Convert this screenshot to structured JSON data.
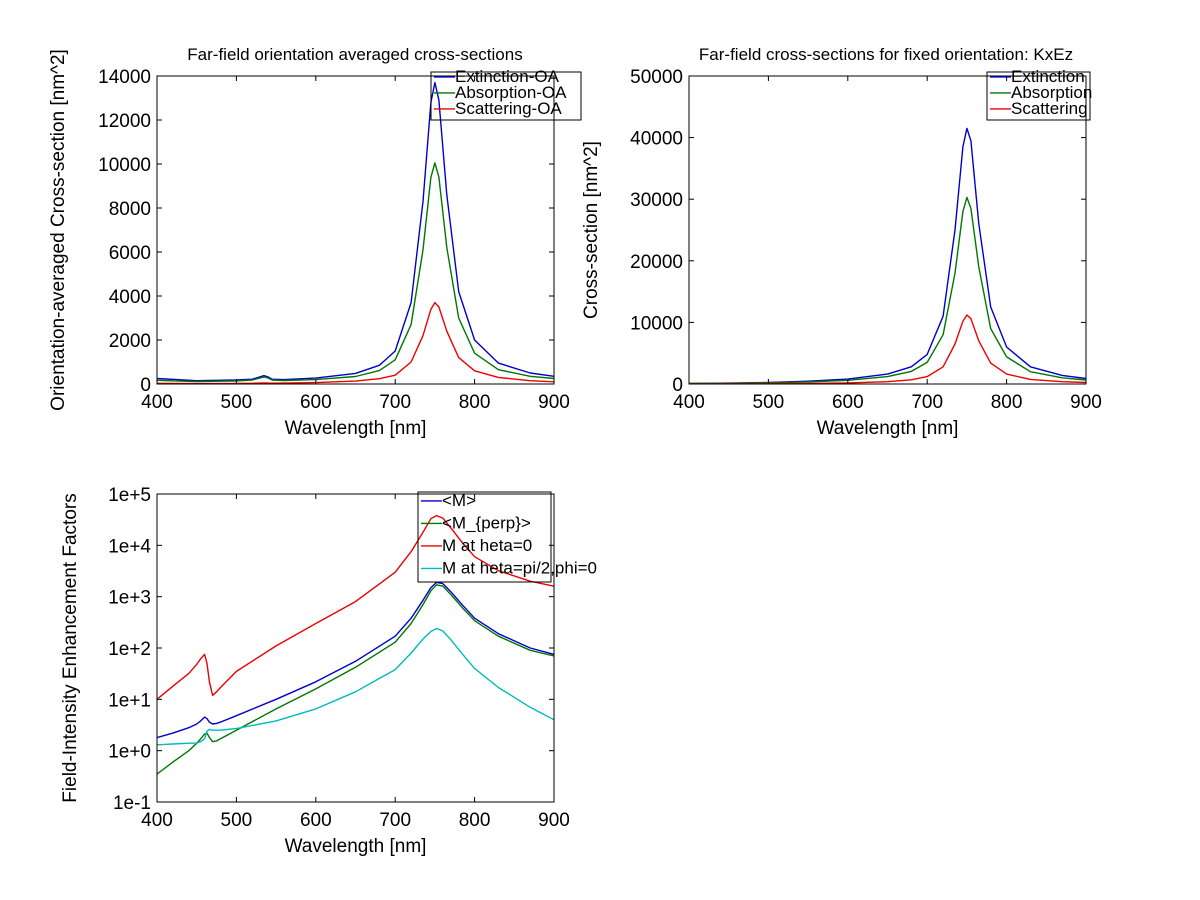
{
  "chart_data": [
    {
      "type": "line",
      "title": "Far-field orientation averaged cross-sections",
      "xlabel": "Wavelength [nm]",
      "ylabel": "Orientation-averaged Cross-section [nm^2]",
      "xlim": [
        400,
        900
      ],
      "ylim": [
        0,
        14000
      ],
      "yscale": "linear",
      "xticks": [
        "400",
        "500",
        "600",
        "700",
        "800",
        "900"
      ],
      "yticks": [
        "0",
        "2000",
        "4000",
        "6000",
        "8000",
        "10000",
        "12000",
        "14000"
      ],
      "legend_position": "top-right",
      "grid": false,
      "x": [
        400,
        450,
        500,
        520,
        535,
        540,
        545,
        560,
        600,
        650,
        680,
        700,
        720,
        735,
        745,
        750,
        755,
        765,
        780,
        800,
        830,
        870,
        900
      ],
      "series": [
        {
          "name": "Extinction-OA",
          "color": "#0000cc",
          "values": [
            250,
            150,
            180,
            220,
            380,
            320,
            220,
            200,
            270,
            480,
            850,
            1500,
            3700,
            8300,
            12800,
            13700,
            12900,
            8600,
            4200,
            2000,
            950,
            500,
            350
          ]
        },
        {
          "name": "Absorption-OA",
          "color": "#007700",
          "values": [
            170,
            110,
            140,
            180,
            320,
            270,
            180,
            160,
            200,
            340,
            610,
            1100,
            2700,
            6100,
            9400,
            10050,
            9400,
            6200,
            3000,
            1400,
            650,
            350,
            250
          ]
        },
        {
          "name": "Scattering-OA",
          "color": "#ee0000",
          "values": [
            30,
            20,
            25,
            30,
            45,
            40,
            35,
            40,
            65,
            130,
            240,
            400,
            1000,
            2200,
            3400,
            3700,
            3500,
            2400,
            1200,
            600,
            300,
            150,
            100
          ]
        }
      ]
    },
    {
      "type": "line",
      "title": "Far-field cross-sections for fixed orientation: KxEz",
      "xlabel": "Wavelength [nm]",
      "ylabel": "Cross-section [nm^2]",
      "xlim": [
        400,
        900
      ],
      "ylim": [
        0,
        50000
      ],
      "yscale": "linear",
      "xticks": [
        "400",
        "500",
        "600",
        "700",
        "800",
        "900"
      ],
      "yticks": [
        "0",
        "10000",
        "20000",
        "30000",
        "40000",
        "50000"
      ],
      "legend_position": "top-right",
      "grid": false,
      "x": [
        400,
        450,
        500,
        550,
        600,
        650,
        680,
        700,
        720,
        735,
        745,
        750,
        755,
        765,
        780,
        800,
        830,
        870,
        900
      ],
      "series": [
        {
          "name": "Extinction",
          "color": "#0000cc",
          "values": [
            100,
            150,
            250,
            450,
            800,
            1600,
            2800,
            4800,
            11000,
            25000,
            38500,
            41500,
            39500,
            26000,
            12500,
            6000,
            2800,
            1400,
            900
          ]
        },
        {
          "name": "Absorption",
          "color": "#007700",
          "values": [
            80,
            120,
            190,
            340,
            600,
            1200,
            2050,
            3500,
            8000,
            18000,
            28000,
            30300,
            28500,
            19000,
            9000,
            4400,
            2000,
            1000,
            650
          ]
        },
        {
          "name": "Scattering",
          "color": "#ee0000",
          "values": [
            20,
            30,
            50,
            100,
            180,
            380,
            680,
            1200,
            2800,
            6500,
            10200,
            11200,
            10600,
            7000,
            3400,
            1600,
            750,
            380,
            250
          ]
        }
      ]
    },
    {
      "type": "line",
      "title": "",
      "xlabel": "Wavelength [nm]",
      "ylabel": "Field-Intensity Enhancement Factors",
      "xlim": [
        400,
        900
      ],
      "ylim": [
        0.1,
        100000
      ],
      "yscale": "log",
      "xticks": [
        "400",
        "500",
        "600",
        "700",
        "800",
        "900"
      ],
      "yticks": [
        "1e-1",
        "1e+0",
        "1e+1",
        "1e+2",
        "1e+3",
        "1e+4",
        "1e+5"
      ],
      "legend_position": "top-right",
      "grid": false,
      "x": [
        400,
        420,
        440,
        450,
        455,
        460,
        463,
        466,
        470,
        475,
        480,
        500,
        550,
        600,
        650,
        700,
        720,
        735,
        745,
        752,
        760,
        770,
        785,
        800,
        830,
        870,
        900
      ],
      "series": [
        {
          "name": "<M>",
          "color": "#0000cc",
          "values": [
            1.8,
            2.2,
            2.8,
            3.3,
            3.8,
            4.5,
            4.2,
            3.6,
            3.3,
            3.4,
            3.6,
            4.8,
            10,
            22,
            55,
            170,
            380,
            850,
            1500,
            1900,
            1800,
            1250,
            680,
            380,
            190,
            100,
            75
          ]
        },
        {
          "name": "<M_{perp}>",
          "color": "#007700",
          "values": [
            0.35,
            0.6,
            1.0,
            1.4,
            1.7,
            2.1,
            2.2,
            1.8,
            1.5,
            1.55,
            1.7,
            2.5,
            6.5,
            16,
            42,
            130,
            300,
            700,
            1300,
            1700,
            1600,
            1100,
            600,
            340,
            170,
            90,
            70
          ]
        },
        {
          "name": "M at  heta=0",
          "color": "#ee0000",
          "values": [
            10,
            18,
            32,
            48,
            62,
            75,
            50,
            22,
            12,
            14,
            17,
            35,
            110,
            300,
            800,
            3000,
            7500,
            18000,
            33000,
            38000,
            34000,
            22000,
            11000,
            6000,
            3200,
            2000,
            1600
          ]
        },
        {
          "name": "M at  heta=pi/2,phi=0",
          "color": "#00bbbb",
          "values": [
            1.3,
            1.35,
            1.4,
            1.4,
            1.5,
            1.7,
            2.4,
            2.6,
            2.5,
            2.5,
            2.5,
            2.7,
            3.8,
            6.5,
            14,
            38,
            80,
            150,
            210,
            240,
            215,
            145,
            75,
            40,
            17,
            7,
            4
          ]
        }
      ]
    }
  ]
}
